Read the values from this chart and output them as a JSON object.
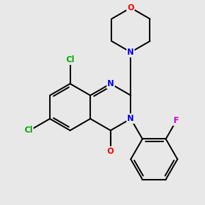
{
  "background_color": "#e8e8e8",
  "atom_colors": {
    "N": "#0000ff",
    "O": "#ff0000",
    "Cl": "#00aa00",
    "F": "#cc00cc",
    "bond": "#000000"
  },
  "bl": 1.0
}
